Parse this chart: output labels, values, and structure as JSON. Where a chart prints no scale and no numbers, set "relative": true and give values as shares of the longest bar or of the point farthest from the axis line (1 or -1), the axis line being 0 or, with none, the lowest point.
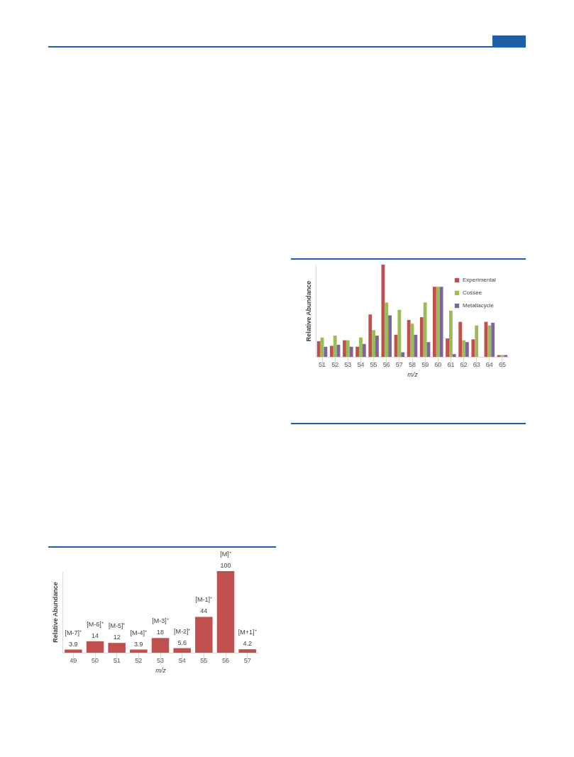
{
  "chart_data": [
    {
      "type": "bar",
      "relative": true,
      "xlabel": "m/z",
      "ylabel": "Relative Abundance",
      "legend": "top right",
      "categories": [
        "51",
        "52",
        "53",
        "54",
        "55",
        "56",
        "57",
        "58",
        "59",
        "60",
        "61",
        "62",
        "63",
        "64",
        "65"
      ],
      "series": [
        {
          "name": "Experimental",
          "color": "#c0504d",
          "values": [
            0.17,
            0.12,
            0.18,
            0.11,
            0.46,
            1.0,
            0.24,
            0.4,
            0.43,
            0.76,
            0.2,
            0.38,
            0.19,
            0.38,
            0.02
          ]
        },
        {
          "name": "Cossee",
          "color": "#9bbb59",
          "values": [
            0.21,
            0.23,
            0.18,
            0.21,
            0.29,
            0.59,
            0.51,
            0.36,
            0.59,
            0.76,
            0.5,
            0.18,
            0.34,
            0.34,
            0.02
          ]
        },
        {
          "name": "Metallacycle",
          "color": "#8064a2",
          "values": [
            0.11,
            0.13,
            0.11,
            0.14,
            0.23,
            0.45,
            0.05,
            0.24,
            0.16,
            0.76,
            0.03,
            0.16,
            null,
            0.37,
            0.02
          ]
        }
      ]
    },
    {
      "type": "bar",
      "xlabel": "m/z",
      "ylabel": "Relative Abundance",
      "tick_labels": "x",
      "data_labels": true,
      "color": "#c0504d",
      "categories": [
        "49",
        "50",
        "51",
        "52",
        "53",
        "54",
        "55",
        "56",
        "57"
      ],
      "values": [
        3.9,
        14,
        12,
        3.9,
        18,
        5.6,
        44,
        100,
        4.2
      ],
      "annotations": [
        {
          "text": "[M-7]⁺",
          "x": "49",
          "y": 3.9
        },
        {
          "text": "[M-6]⁺",
          "x": "50",
          "y": 14
        },
        {
          "text": "[M-5]⁺",
          "x": "51",
          "y": 12
        },
        {
          "text": "[M-4]⁺",
          "x": "52",
          "y": 3.9
        },
        {
          "text": "[M-3]⁺",
          "x": "53",
          "y": 18
        },
        {
          "text": "[M-2]⁺",
          "x": "54",
          "y": 5.6
        },
        {
          "text": "[M-1]⁺",
          "x": "55",
          "y": 44
        },
        {
          "text": "[M]⁺",
          "x": "56",
          "y": 100
        },
        {
          "text": "[M+1]⁺",
          "x": "57",
          "y": 4.2
        }
      ]
    }
  ]
}
